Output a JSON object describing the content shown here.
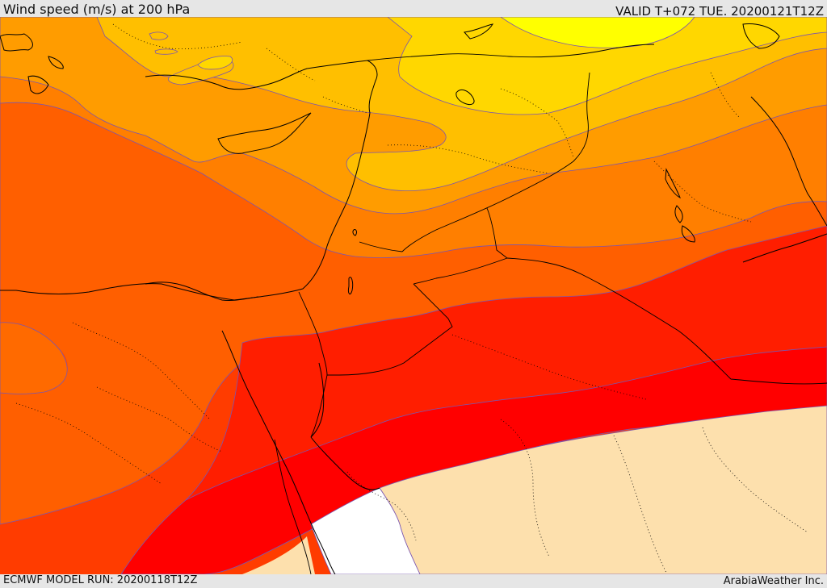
{
  "header": {
    "title": "Wind speed (m/s) at 200 hPa",
    "valid_time": "VALID T+072 TUE. 20200121T12Z"
  },
  "footer": {
    "model_run": "ECMWF MODEL RUN: 20200118T12Z",
    "credit": "ArabiaWeather Inc."
  },
  "map": {
    "field": "wind speed",
    "level": "200 hPa",
    "colors": {
      "yellow": "#ffff00",
      "yellow_orange": "#ffd700",
      "amber": "#ffbf00",
      "orange": "#ff9c00",
      "dark_orange": "#ff7f00",
      "orange_red": "#ff5f00",
      "red_orange": "#ff3c00",
      "red": "#ff1e00",
      "pure_red": "#ff0000",
      "light_tan": "#fde0ad",
      "white": "#ffffff"
    }
  }
}
